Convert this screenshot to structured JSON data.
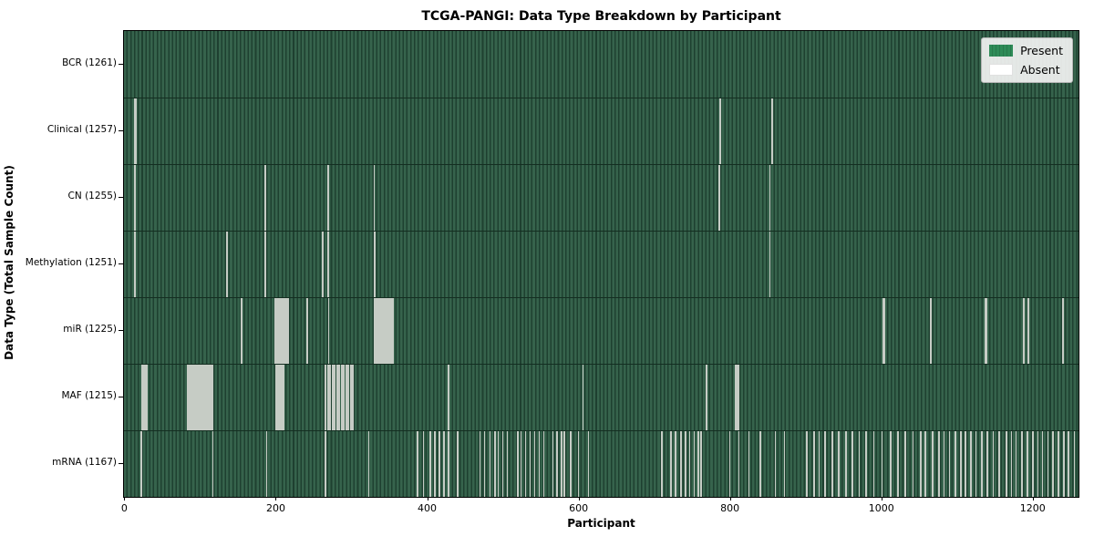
{
  "figure": {
    "title": "TCGA-PANGI: Data Type Breakdown by Participant",
    "xlabel": "Participant",
    "ylabel": "Data Type (Total Sample Count)"
  },
  "legend": {
    "present_label": "Present",
    "absent_label": "Absent"
  },
  "colors": {
    "present_green": "#2e8b57",
    "present_bar_fill": "#36634c",
    "bar_edge_dark": "#1e4030",
    "absent_white": "#ffffff",
    "absent_line_render": "#c6ccc5",
    "row_separator": "#142e21",
    "spine": "#000000",
    "legend_bg": "#f3f3f3",
    "legend_border": "#b5b5b5"
  },
  "chart_data": {
    "type": "heatmap",
    "subtype": "presence-absence-matrix",
    "title": "TCGA-PANGI: Data Type Breakdown by Participant",
    "xlabel": "Participant",
    "ylabel": "Data Type (Total Sample Count)",
    "legend_entries": [
      "Present",
      "Absent"
    ],
    "legend_position": "upper right",
    "grid": false,
    "total_participants": 1261,
    "xlim": [
      -0.5,
      1260.5
    ],
    "x_ticks": [
      0,
      200,
      400,
      600,
      800,
      1000,
      1200
    ],
    "rows": [
      {
        "name": "BCR",
        "total": 1261,
        "label": "BCR (1261)",
        "absent": []
      },
      {
        "name": "Clinical",
        "total": 1257,
        "label": "Clinical (1257)",
        "absent": [
          14,
          15,
          787,
          856
        ]
      },
      {
        "name": "CN",
        "total": 1255,
        "label": "CN (1255)",
        "absent": [
          14,
          186,
          269,
          330,
          786,
          853
        ]
      },
      {
        "name": "Methylation",
        "total": 1251,
        "label": "Methylation (1251)",
        "absent": [
          14,
          135,
          136,
          186,
          262,
          269,
          270,
          330,
          331,
          853
        ]
      },
      {
        "name": "miR",
        "total": 1225,
        "label": "miR (1225)",
        "absent": [
          155,
          199,
          200,
          202,
          203,
          205,
          206,
          208,
          210,
          212,
          214,
          216,
          242,
          270,
          331,
          333,
          335,
          337,
          339,
          341,
          343,
          345,
          347,
          349,
          351,
          353,
          355,
          1003,
          1004,
          1065,
          1138,
          1139,
          1188,
          1194,
          1195,
          1240
        ]
      },
      {
        "name": "MAF",
        "total": 1215,
        "label": "MAF (1215)",
        "absent": [
          24,
          26,
          28,
          30,
          84,
          86,
          88,
          90,
          92,
          94,
          96,
          98,
          100,
          102,
          104,
          106,
          108,
          110,
          112,
          114,
          116,
          201,
          203,
          205,
          207,
          209,
          211,
          266,
          269,
          272,
          275,
          278,
          281,
          284,
          287,
          290,
          293,
          296,
          299,
          302,
          428,
          606,
          769,
          807,
          809,
          811
        ]
      },
      {
        "name": "mRNA",
        "total": 1167,
        "label": "mRNA (1167)",
        "absent": [
          22,
          117,
          188,
          266,
          323,
          387,
          395,
          404,
          410,
          416,
          422,
          428,
          440,
          470,
          476,
          483,
          490,
          494,
          500,
          506,
          520,
          524,
          530,
          536,
          542,
          548,
          554,
          566,
          572,
          578,
          581,
          590,
          600,
          613,
          710,
          722,
          728,
          735,
          741,
          747,
          753,
          758,
          762,
          800,
          812,
          825,
          840,
          860,
          872,
          902,
          911,
          918,
          926,
          935,
          944,
          953,
          962,
          971,
          980,
          990,
          1001,
          1012,
          1022,
          1032,
          1042,
          1052,
          1058,
          1068,
          1076,
          1083,
          1090,
          1098,
          1105,
          1111,
          1118,
          1125,
          1133,
          1140,
          1148,
          1156,
          1165,
          1172,
          1178,
          1186,
          1193,
          1200,
          1207,
          1213,
          1220,
          1227,
          1234,
          1241,
          1247,
          1255
        ]
      }
    ]
  }
}
